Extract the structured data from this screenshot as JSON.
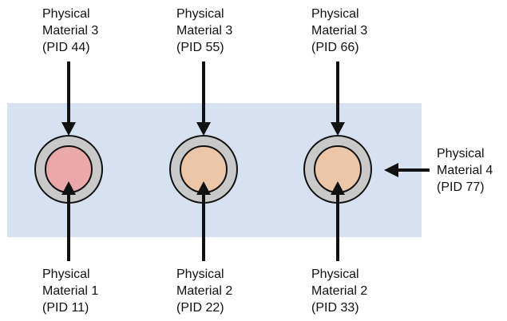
{
  "colors": {
    "plate": "#d6e1f2",
    "ring": "#c9c9c9",
    "inner_pink": "#e8a9a8",
    "inner_peach": "#ebc6a9",
    "stroke": "#111111"
  },
  "top_labels": [
    {
      "line1": "Physical",
      "line2": "Material 3",
      "line3": "(PID 44)"
    },
    {
      "line1": "Physical",
      "line2": "Material 3",
      "line3": "(PID 55)"
    },
    {
      "line1": "Physical",
      "line2": "Material 3",
      "line3": "(PID 66)"
    }
  ],
  "bottom_labels": [
    {
      "line1": "Physical",
      "line2": "Material 1",
      "line3": "(PID 11)"
    },
    {
      "line1": "Physical",
      "line2": "Material 2",
      "line3": "(PID 22)"
    },
    {
      "line1": "Physical",
      "line2": "Material 2",
      "line3": "(PID 33)"
    }
  ],
  "side_label": {
    "line1": "Physical",
    "line2": "Material 4",
    "line3": "(PID 77)"
  }
}
